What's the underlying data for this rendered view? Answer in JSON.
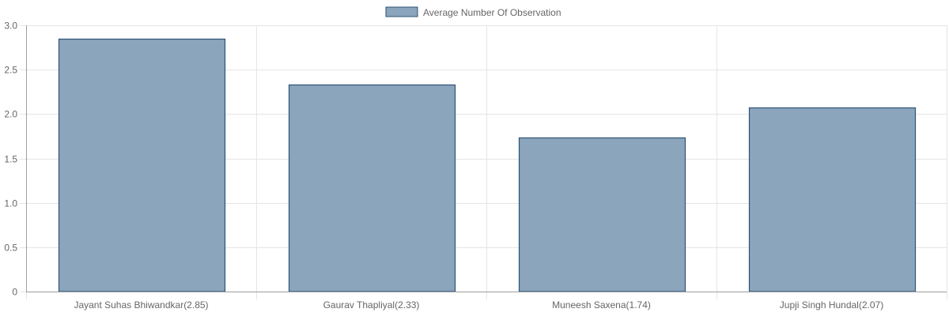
{
  "chart_data": {
    "type": "bar",
    "categories": [
      "Jayant Suhas Bhiwandkar(2.85)",
      "Gaurav  Thapliyal(2.33)",
      "Muneesh  Saxena(1.74)",
      "Jupji Singh Hundal(2.07)"
    ],
    "series": [
      {
        "name": "Average Number Of Observation",
        "values": [
          2.85,
          2.33,
          1.74,
          2.07
        ]
      }
    ],
    "ylim": [
      0,
      3
    ],
    "yticks": [
      "0",
      "0.5",
      "1.0",
      "1.5",
      "2.0",
      "2.5",
      "3.0"
    ],
    "grid": true,
    "legend_position": "top-center",
    "colors": {
      "bar_fill": "#8ba5bd",
      "bar_stroke": "#2d5375"
    }
  }
}
